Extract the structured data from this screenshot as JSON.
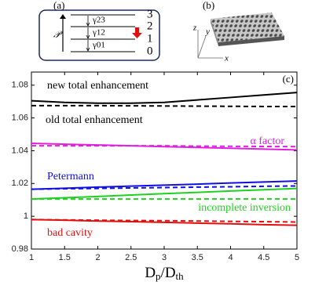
{
  "chart_data": {
    "type": "line",
    "panel_label": "(c)",
    "xlabel": [
      "D",
      "p",
      "/D",
      "th"
    ],
    "x": [
      1,
      1.5,
      2,
      2.5,
      3,
      3.5,
      4,
      4.5,
      5
    ],
    "xlim": [
      1,
      5
    ],
    "xticks": [
      1,
      1.5,
      2,
      2.5,
      3,
      3.5,
      4,
      4.5,
      5
    ],
    "ylim": [
      0.98,
      1.088
    ],
    "yticks": [
      0.98,
      1,
      1.02,
      1.04,
      1.06,
      1.08
    ],
    "series": [
      {
        "name": "new total enhancement",
        "color": "#000000",
        "dashed": false,
        "values": [
          1.0705,
          1.0695,
          1.069,
          1.069,
          1.0695,
          1.071,
          1.0725,
          1.074,
          1.0755
        ]
      },
      {
        "name": "old total enhancement",
        "color": "#000000",
        "dashed": true,
        "values": [
          1.0675,
          1.0675,
          1.0675,
          1.0674,
          1.0673,
          1.0672,
          1.0671,
          1.067,
          1.067
        ]
      },
      {
        "name": "α factor",
        "color": "#e020e0",
        "dashed": false,
        "values": [
          1.0445,
          1.044,
          1.0435,
          1.043,
          1.0425,
          1.042,
          1.0415,
          1.041,
          1.0405
        ]
      },
      {
        "color": "#e020e0",
        "dashed": true,
        "values": [
          1.043,
          1.043,
          1.043,
          1.043,
          1.043,
          1.0428,
          1.0427,
          1.0426,
          1.0425
        ]
      },
      {
        "name": "Petermann",
        "color": "#1010e0",
        "dashed": false,
        "values": [
          1.0165,
          1.0171,
          1.0178,
          1.0184,
          1.019,
          1.0196,
          1.0203,
          1.0209,
          1.0215
        ]
      },
      {
        "color": "#1010e0",
        "dashed": true,
        "values": [
          1.0165,
          1.0168,
          1.017,
          1.0173,
          1.0175,
          1.0178,
          1.018,
          1.0183,
          1.0185
        ]
      },
      {
        "name": "incomplete inversion",
        "color": "#20d020",
        "dashed": false,
        "values": [
          1.0105,
          1.0113,
          1.0121,
          1.013,
          1.0138,
          1.0146,
          1.0154,
          1.0162,
          1.017
        ]
      },
      {
        "color": "#20d020",
        "dashed": true,
        "values": [
          1.0105,
          1.0105,
          1.0105,
          1.0105,
          1.0105,
          1.0105,
          1.0105,
          1.0105,
          1.0105
        ]
      },
      {
        "name": "bad cavity",
        "color": "#e01010",
        "dashed": false,
        "values": [
          0.998,
          0.9976,
          0.9971,
          0.9967,
          0.9963,
          0.9958,
          0.9954,
          0.9949,
          0.9945
        ]
      },
      {
        "color": "#e01010",
        "dashed": true,
        "values": [
          0.998,
          0.9978,
          0.9976,
          0.9974,
          0.9973,
          0.9971,
          0.9969,
          0.9967,
          0.9965
        ]
      }
    ]
  },
  "inset_a": {
    "label": "(a)",
    "levels": [
      "3",
      "2",
      "1",
      "0"
    ],
    "rates": [
      "γ23",
      "γ12",
      "γ01"
    ],
    "pump": "𝒫"
  },
  "inset_b": {
    "label": "(b)",
    "axes": [
      "z",
      "y",
      "x"
    ]
  }
}
